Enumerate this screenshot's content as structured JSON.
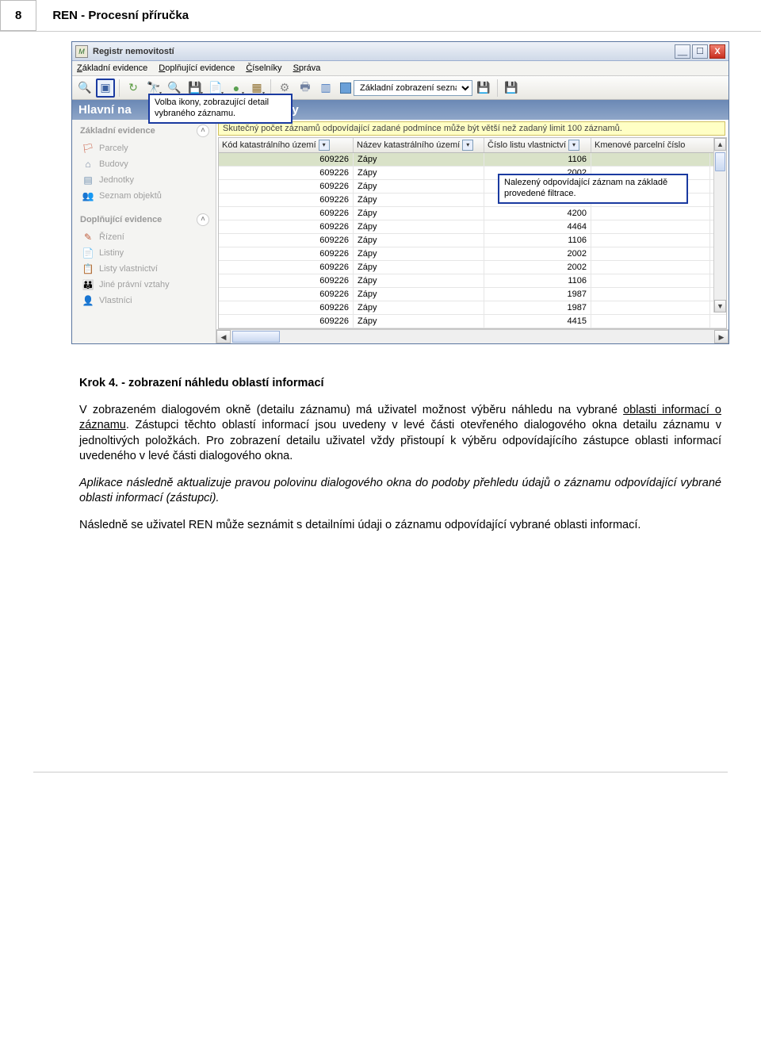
{
  "page": {
    "number": "8",
    "title": "REN - Procesní příručka"
  },
  "window": {
    "icon_letter": "M",
    "title": "Registr nemovitostí",
    "min_glyph": "__",
    "max_glyph": "☐",
    "close_glyph": "X"
  },
  "menubar": {
    "item1_pre": "Z",
    "item1_rest": "ákladní evidence",
    "item2_pre": "D",
    "item2_rest": "oplňující evidence",
    "item3_pre": "Č",
    "item3_rest": "íselníky",
    "item4_pre": "S",
    "item4_rest": "práva"
  },
  "toolbar": {
    "combo_label": "Základní zobrazení sezna",
    "icons": {
      "find": "🔍",
      "detail": "▣",
      "sep": "",
      "refresh": "↻",
      "binoc": "🔎",
      "zoom": "🔍",
      "save": "💾",
      "new": "📄",
      "globe": "●",
      "box": "▦",
      "gear": "⚙",
      "print": "🖶",
      "grid": "▥",
      "diskx": "💾"
    }
  },
  "header_band": {
    "left": "Hlavní na",
    "right": "ely"
  },
  "callouts": {
    "tooltip": "Volba ikony, zobrazující detail vybraného záznamu.",
    "row": "Nalezený odpovídající záznam na základě provedené filtrace."
  },
  "sidebar": {
    "group1": "Základní evidence",
    "items1": [
      {
        "icon": "🏳",
        "label": "Parcely",
        "color": "#c85a40"
      },
      {
        "icon": "⌂",
        "label": "Budovy",
        "color": "#8090a8"
      },
      {
        "icon": "▤",
        "label": "Jednotky",
        "color": "#7090b0"
      },
      {
        "icon": "👥",
        "label": "Seznam objektů",
        "color": "#b0a060"
      }
    ],
    "group2": "Doplňující evidence",
    "items2": [
      {
        "icon": "✎",
        "label": "Řízení",
        "color": "#c06040"
      },
      {
        "icon": "📄",
        "label": "Listiny",
        "color": "#9090a0"
      },
      {
        "icon": "📋",
        "label": "Listy vlastnictví",
        "color": "#a09070"
      },
      {
        "icon": "👪",
        "label": "Jiné právní vztahy",
        "color": "#9070a0"
      },
      {
        "icon": "👤",
        "label": "Vlastníci",
        "color": "#80a060"
      }
    ]
  },
  "warn": "Skutečný počet záznamů odpovídající zadané podmínce může být větší než zadaný limit 100 záznamů.",
  "grid": {
    "headers": {
      "kod": "Kód katastrálního území",
      "naz": "Název katastrálního území",
      "cis": "Číslo listu vlastnictví",
      "kmen": "Kmenové parcelní číslo"
    },
    "rows": [
      {
        "kod": "609226",
        "naz": "Zápy",
        "cis": "1106",
        "sel": true
      },
      {
        "kod": "609226",
        "naz": "Zápy",
        "cis": "2002"
      },
      {
        "kod": "609226",
        "naz": "Zápy",
        "cis": ""
      },
      {
        "kod": "609226",
        "naz": "Zápy",
        "cis": "4464"
      },
      {
        "kod": "609226",
        "naz": "Zápy",
        "cis": "4200"
      },
      {
        "kod": "609226",
        "naz": "Zápy",
        "cis": "4464"
      },
      {
        "kod": "609226",
        "naz": "Zápy",
        "cis": "1106"
      },
      {
        "kod": "609226",
        "naz": "Zápy",
        "cis": "2002"
      },
      {
        "kod": "609226",
        "naz": "Zápy",
        "cis": "2002"
      },
      {
        "kod": "609226",
        "naz": "Zápy",
        "cis": "1106"
      },
      {
        "kod": "609226",
        "naz": "Zápy",
        "cis": "1987"
      },
      {
        "kod": "609226",
        "naz": "Zápy",
        "cis": "1987"
      },
      {
        "kod": "609226",
        "naz": "Zápy",
        "cis": "4415"
      }
    ]
  },
  "text": {
    "heading": "Krok 4. - zobrazení náhledu oblastí informací",
    "p1a": "V zobrazeném dialogovém okně (detailu záznamu) má uživatel možnost výběru náhledu na vybrané ",
    "p1u": "oblasti informací o záznamu",
    "p1b": ". Zástupci těchto oblastí informací jsou uvedeny v levé části otevřeného dialogového okna detailu záznamu v jednoltivých položkách. Pro zobrazení detailu uživatel vždy přistoupí k výběru odpovídajícího zástupce oblasti informací uvedeného v levé části dialogového okna.",
    "p2": "Aplikace následně aktualizuje pravou polovinu dialogového okna do podoby přehledu údajů o záznamu odpovídající vybrané oblasti informací (zástupci).",
    "p3": "Následně se uživatel REN může seznámit s detailními údaji o záznamu odpovídající vybrané oblasti informací."
  }
}
